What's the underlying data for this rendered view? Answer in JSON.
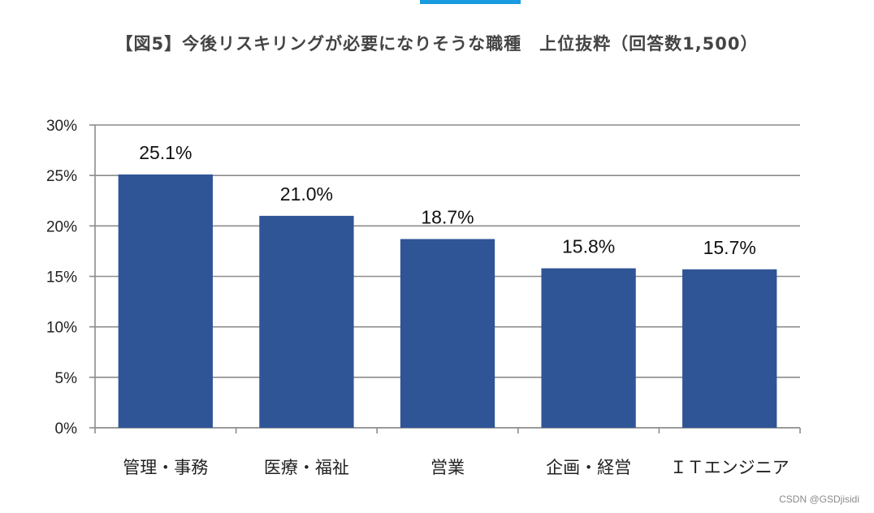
{
  "header": {
    "accent_color": "#1a9be0"
  },
  "chart_data": {
    "type": "bar",
    "title": "【図5】今後リスキリングが必要になりそうな職種　上位抜粋（回答数1,500）",
    "categories": [
      "管理・事務",
      "医療・福祉",
      "営業",
      "企画・経営",
      "ＩＴエンジニア"
    ],
    "values": [
      25.1,
      21.0,
      18.7,
      15.8,
      15.7
    ],
    "data_labels": [
      "25.1%",
      "21.0%",
      "18.7%",
      "15.8%",
      "15.7%"
    ],
    "yticks": [
      0,
      5,
      10,
      15,
      20,
      25,
      30
    ],
    "ytick_labels": [
      "0%",
      "5%",
      "10%",
      "15%",
      "20%",
      "25%",
      "30%"
    ],
    "ylim": [
      0,
      30
    ],
    "xlabel": "",
    "ylabel": "",
    "grid": true,
    "bar_color": "#2f5597"
  },
  "watermark": "CSDN @GSDjisidi"
}
